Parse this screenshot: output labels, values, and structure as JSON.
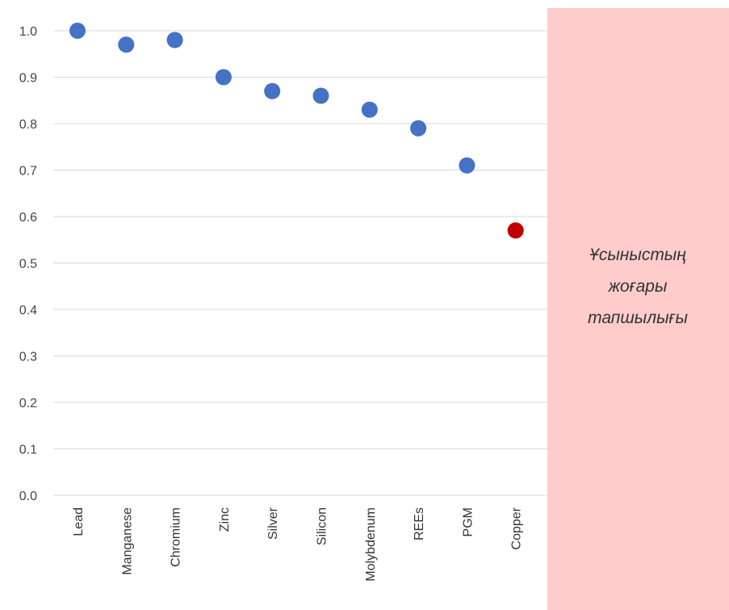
{
  "chart_data": {
    "type": "scatter",
    "title": "",
    "xlabel": "",
    "ylabel": "",
    "ylim": [
      0,
      1.0
    ],
    "yticks": [
      "0.0",
      "0.1",
      "0.2",
      "0.3",
      "0.4",
      "0.5",
      "0.6",
      "0.7",
      "0.8",
      "0.9",
      "1.0"
    ],
    "categories": [
      "Lead",
      "Manganese",
      "Chromium",
      "Zinc",
      "Silver",
      "Silicon",
      "Molybdenum",
      "REEs",
      "PGM",
      "Copper"
    ],
    "values": [
      1.0,
      0.97,
      0.98,
      0.9,
      0.87,
      0.86,
      0.83,
      0.79,
      0.71,
      0.57
    ],
    "point_colors": [
      "#4472c4",
      "#4472c4",
      "#4472c4",
      "#4472c4",
      "#4472c4",
      "#4472c4",
      "#4472c4",
      "#4472c4",
      "#4472c4",
      "#c00000"
    ],
    "grid": true,
    "legend": "none"
  },
  "panel": {
    "lines": [
      "Ұсыныстың",
      "жоғары",
      "тапшылығы"
    ],
    "color": "#ffcccc"
  }
}
